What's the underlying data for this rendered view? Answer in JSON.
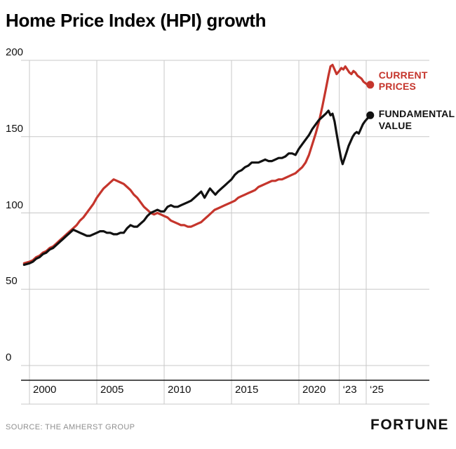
{
  "title": "Home Price Index (HPI) growth",
  "footer": {
    "source": "SOURCE: THE AMHERST GROUP",
    "brand": "FORTUNE"
  },
  "colors": {
    "current_prices": "#c5352c",
    "fundamental_value": "#111111",
    "grid": "#c8c8c8",
    "axis": "#1a1a1a",
    "bottom_rule": "#c8c8c8",
    "source_text": "#8f8f8f"
  },
  "chart_data": {
    "type": "line",
    "title": "Home Price Index (HPI) growth",
    "xlabel": "",
    "ylabel": "",
    "grid": true,
    "legend_position": "right-of-line-end",
    "x_range": [
      1999.6,
      2026
    ],
    "ylim": [
      0,
      200
    ],
    "yticks": [
      {
        "value": 0,
        "label": "0"
      },
      {
        "value": 50,
        "label": "50"
      },
      {
        "value": 100,
        "label": "100"
      },
      {
        "value": 150,
        "label": "150"
      },
      {
        "value": 200,
        "label": "200"
      }
    ],
    "xticks": [
      {
        "value": 2000,
        "label": "2000"
      },
      {
        "value": 2005,
        "label": "2005"
      },
      {
        "value": 2010,
        "label": "2010"
      },
      {
        "value": 2015,
        "label": "2015"
      },
      {
        "value": 2020,
        "label": "2020"
      },
      {
        "value": 2023,
        "label": "‘23"
      },
      {
        "value": 2025,
        "label": "‘25"
      }
    ],
    "series": [
      {
        "name": "CURRENT PRICES",
        "label_lines": [
          "CURRENT",
          "PRICES"
        ],
        "color": "#c5352c",
        "points": [
          [
            1999.6,
            67
          ],
          [
            2000,
            68
          ],
          [
            2000.25,
            69
          ],
          [
            2000.5,
            71
          ],
          [
            2000.75,
            72
          ],
          [
            2001,
            74
          ],
          [
            2001.25,
            75
          ],
          [
            2001.5,
            77
          ],
          [
            2001.75,
            78
          ],
          [
            2002,
            80
          ],
          [
            2002.25,
            82
          ],
          [
            2002.5,
            84
          ],
          [
            2002.75,
            86
          ],
          [
            2003,
            88
          ],
          [
            2003.25,
            90
          ],
          [
            2003.5,
            92
          ],
          [
            2003.75,
            95
          ],
          [
            2004,
            97
          ],
          [
            2004.25,
            100
          ],
          [
            2004.5,
            103
          ],
          [
            2004.75,
            106
          ],
          [
            2005,
            110
          ],
          [
            2005.25,
            113
          ],
          [
            2005.5,
            116
          ],
          [
            2005.75,
            118
          ],
          [
            2006,
            120
          ],
          [
            2006.25,
            122
          ],
          [
            2006.5,
            121
          ],
          [
            2006.75,
            120
          ],
          [
            2007,
            119
          ],
          [
            2007.25,
            117
          ],
          [
            2007.5,
            115
          ],
          [
            2007.75,
            112
          ],
          [
            2008,
            110
          ],
          [
            2008.25,
            107
          ],
          [
            2008.5,
            104
          ],
          [
            2008.75,
            102
          ],
          [
            2009,
            100
          ],
          [
            2009.25,
            99
          ],
          [
            2009.5,
            100
          ],
          [
            2009.75,
            99
          ],
          [
            2010,
            98
          ],
          [
            2010.25,
            97
          ],
          [
            2010.5,
            95
          ],
          [
            2010.75,
            94
          ],
          [
            2011,
            93
          ],
          [
            2011.25,
            92
          ],
          [
            2011.5,
            92
          ],
          [
            2011.75,
            91
          ],
          [
            2012,
            91
          ],
          [
            2012.25,
            92
          ],
          [
            2012.5,
            93
          ],
          [
            2012.75,
            94
          ],
          [
            2013,
            96
          ],
          [
            2013.25,
            98
          ],
          [
            2013.5,
            100
          ],
          [
            2013.75,
            102
          ],
          [
            2014,
            103
          ],
          [
            2014.25,
            104
          ],
          [
            2014.5,
            105
          ],
          [
            2014.75,
            106
          ],
          [
            2015,
            107
          ],
          [
            2015.25,
            108
          ],
          [
            2015.5,
            110
          ],
          [
            2015.75,
            111
          ],
          [
            2016,
            112
          ],
          [
            2016.25,
            113
          ],
          [
            2016.5,
            114
          ],
          [
            2016.75,
            115
          ],
          [
            2017,
            117
          ],
          [
            2017.25,
            118
          ],
          [
            2017.5,
            119
          ],
          [
            2017.75,
            120
          ],
          [
            2018,
            121
          ],
          [
            2018.25,
            121
          ],
          [
            2018.5,
            122
          ],
          [
            2018.75,
            122
          ],
          [
            2019,
            123
          ],
          [
            2019.25,
            124
          ],
          [
            2019.5,
            125
          ],
          [
            2019.75,
            126
          ],
          [
            2020,
            128
          ],
          [
            2020.25,
            130
          ],
          [
            2020.5,
            133
          ],
          [
            2020.75,
            138
          ],
          [
            2021,
            145
          ],
          [
            2021.25,
            152
          ],
          [
            2021.5,
            160
          ],
          [
            2021.75,
            170
          ],
          [
            2022,
            181
          ],
          [
            2022.2,
            190
          ],
          [
            2022.35,
            196
          ],
          [
            2022.5,
            197
          ],
          [
            2022.65,
            194
          ],
          [
            2022.8,
            191
          ],
          [
            2023,
            193
          ],
          [
            2023.15,
            195
          ],
          [
            2023.3,
            194
          ],
          [
            2023.45,
            196
          ],
          [
            2023.6,
            194
          ],
          [
            2023.75,
            192
          ],
          [
            2023.9,
            191
          ],
          [
            2024.05,
            193
          ],
          [
            2024.2,
            192
          ],
          [
            2024.35,
            190
          ],
          [
            2024.5,
            189
          ],
          [
            2024.65,
            188
          ],
          [
            2024.8,
            186
          ],
          [
            2024.95,
            185
          ],
          [
            2025.1,
            184
          ],
          [
            2025.3,
            184
          ]
        ]
      },
      {
        "name": "FUNDAMENTAL VALUE",
        "label_lines": [
          "FUNDAMENTAL",
          "VALUE"
        ],
        "color": "#111111",
        "points": [
          [
            1999.6,
            66
          ],
          [
            2000,
            67
          ],
          [
            2000.25,
            68
          ],
          [
            2000.5,
            70
          ],
          [
            2000.75,
            71
          ],
          [
            2001,
            73
          ],
          [
            2001.25,
            74
          ],
          [
            2001.5,
            76
          ],
          [
            2001.75,
            77
          ],
          [
            2002,
            79
          ],
          [
            2002.25,
            81
          ],
          [
            2002.5,
            83
          ],
          [
            2002.75,
            85
          ],
          [
            2003,
            87
          ],
          [
            2003.25,
            89
          ],
          [
            2003.5,
            88
          ],
          [
            2003.75,
            87
          ],
          [
            2004,
            86
          ],
          [
            2004.25,
            85
          ],
          [
            2004.5,
            85
          ],
          [
            2004.75,
            86
          ],
          [
            2005,
            87
          ],
          [
            2005.25,
            88
          ],
          [
            2005.5,
            88
          ],
          [
            2005.75,
            87
          ],
          [
            2006,
            87
          ],
          [
            2006.25,
            86
          ],
          [
            2006.5,
            86
          ],
          [
            2006.75,
            87
          ],
          [
            2007,
            87
          ],
          [
            2007.25,
            90
          ],
          [
            2007.5,
            92
          ],
          [
            2007.75,
            91
          ],
          [
            2008,
            91
          ],
          [
            2008.25,
            93
          ],
          [
            2008.5,
            95
          ],
          [
            2008.75,
            98
          ],
          [
            2009,
            100
          ],
          [
            2009.25,
            101
          ],
          [
            2009.5,
            102
          ],
          [
            2009.75,
            101
          ],
          [
            2010,
            101
          ],
          [
            2010.25,
            104
          ],
          [
            2010.5,
            105
          ],
          [
            2010.75,
            104
          ],
          [
            2011,
            104
          ],
          [
            2011.25,
            105
          ],
          [
            2011.5,
            106
          ],
          [
            2011.75,
            107
          ],
          [
            2012,
            108
          ],
          [
            2012.25,
            110
          ],
          [
            2012.5,
            112
          ],
          [
            2012.75,
            114
          ],
          [
            2013,
            110
          ],
          [
            2013.2,
            113
          ],
          [
            2013.4,
            116
          ],
          [
            2013.6,
            114
          ],
          [
            2013.8,
            112
          ],
          [
            2014,
            114
          ],
          [
            2014.25,
            116
          ],
          [
            2014.5,
            118
          ],
          [
            2014.75,
            120
          ],
          [
            2015,
            122
          ],
          [
            2015.25,
            125
          ],
          [
            2015.5,
            127
          ],
          [
            2015.75,
            128
          ],
          [
            2016,
            130
          ],
          [
            2016.25,
            131
          ],
          [
            2016.5,
            133
          ],
          [
            2016.75,
            133
          ],
          [
            2017,
            133
          ],
          [
            2017.25,
            134
          ],
          [
            2017.5,
            135
          ],
          [
            2017.75,
            134
          ],
          [
            2018,
            134
          ],
          [
            2018.25,
            135
          ],
          [
            2018.5,
            136
          ],
          [
            2018.75,
            136
          ],
          [
            2019,
            137
          ],
          [
            2019.25,
            139
          ],
          [
            2019.5,
            139
          ],
          [
            2019.75,
            138
          ],
          [
            2020,
            142
          ],
          [
            2020.25,
            145
          ],
          [
            2020.5,
            148
          ],
          [
            2020.75,
            151
          ],
          [
            2021,
            155
          ],
          [
            2021.25,
            158
          ],
          [
            2021.5,
            161
          ],
          [
            2021.75,
            163
          ],
          [
            2022,
            165
          ],
          [
            2022.2,
            167
          ],
          [
            2022.35,
            164
          ],
          [
            2022.5,
            165
          ],
          [
            2022.65,
            160
          ],
          [
            2022.8,
            152
          ],
          [
            2023,
            142
          ],
          [
            2023.15,
            135
          ],
          [
            2023.25,
            132
          ],
          [
            2023.4,
            136
          ],
          [
            2023.55,
            140
          ],
          [
            2023.7,
            144
          ],
          [
            2023.85,
            147
          ],
          [
            2024,
            150
          ],
          [
            2024.15,
            152
          ],
          [
            2024.3,
            153
          ],
          [
            2024.45,
            152
          ],
          [
            2024.6,
            155
          ],
          [
            2024.75,
            158
          ],
          [
            2024.9,
            160
          ],
          [
            2025.1,
            162
          ],
          [
            2025.3,
            164
          ]
        ]
      }
    ]
  }
}
